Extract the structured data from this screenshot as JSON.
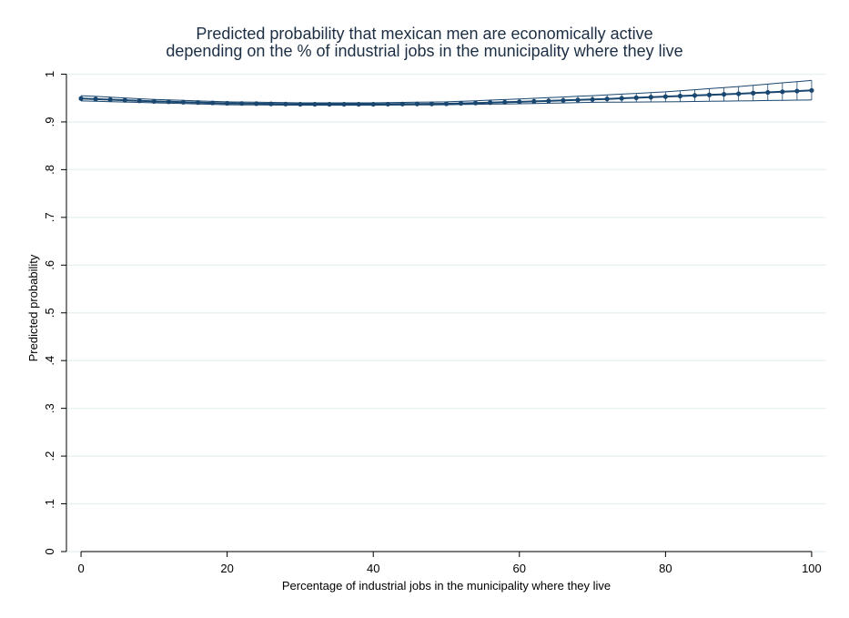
{
  "chart_data": {
    "type": "line",
    "title": "Predicted probability that mexican men are economically active",
    "subtitle": "depending on the % of industrial jobs in the municipality where they live",
    "xlabel": "Percentage of industrial jobs in the municipality where they live",
    "ylabel": "Predicted probability",
    "xlim": [
      -2,
      102
    ],
    "ylim": [
      0,
      1.02
    ],
    "x_ticks": [
      0,
      20,
      40,
      60,
      80,
      100
    ],
    "x_tick_labels": [
      "0",
      "20",
      "40",
      "60",
      "80",
      "100"
    ],
    "y_ticks": [
      0,
      0.1,
      0.2,
      0.3,
      0.4,
      0.5,
      0.6,
      0.7,
      0.8,
      0.9,
      1
    ],
    "y_tick_labels": [
      "0",
      ".1",
      ".2",
      ".3",
      ".4",
      ".5",
      ".6",
      ".7",
      ".8",
      ".9",
      "1"
    ],
    "grid": true,
    "legend": "none",
    "series": [
      {
        "x": [
          0,
          10,
          20,
          30,
          40,
          50,
          60,
          70,
          80,
          90,
          100
        ],
        "y": [
          0.949,
          0.943,
          0.939,
          0.937,
          0.937,
          0.938,
          0.942,
          0.947,
          0.953,
          0.959,
          0.966
        ],
        "lower": [
          0.944,
          0.94,
          0.936,
          0.935,
          0.935,
          0.936,
          0.938,
          0.941,
          0.942,
          0.944,
          0.946
        ],
        "upper": [
          0.955,
          0.947,
          0.942,
          0.94,
          0.94,
          0.942,
          0.948,
          0.955,
          0.963,
          0.974,
          0.987
        ]
      }
    ],
    "colors": {
      "line": "#1a476f",
      "ci": "#1a476f",
      "grid": "#eaf2f3",
      "axis": "#000000",
      "title": "#1c2e44"
    }
  }
}
